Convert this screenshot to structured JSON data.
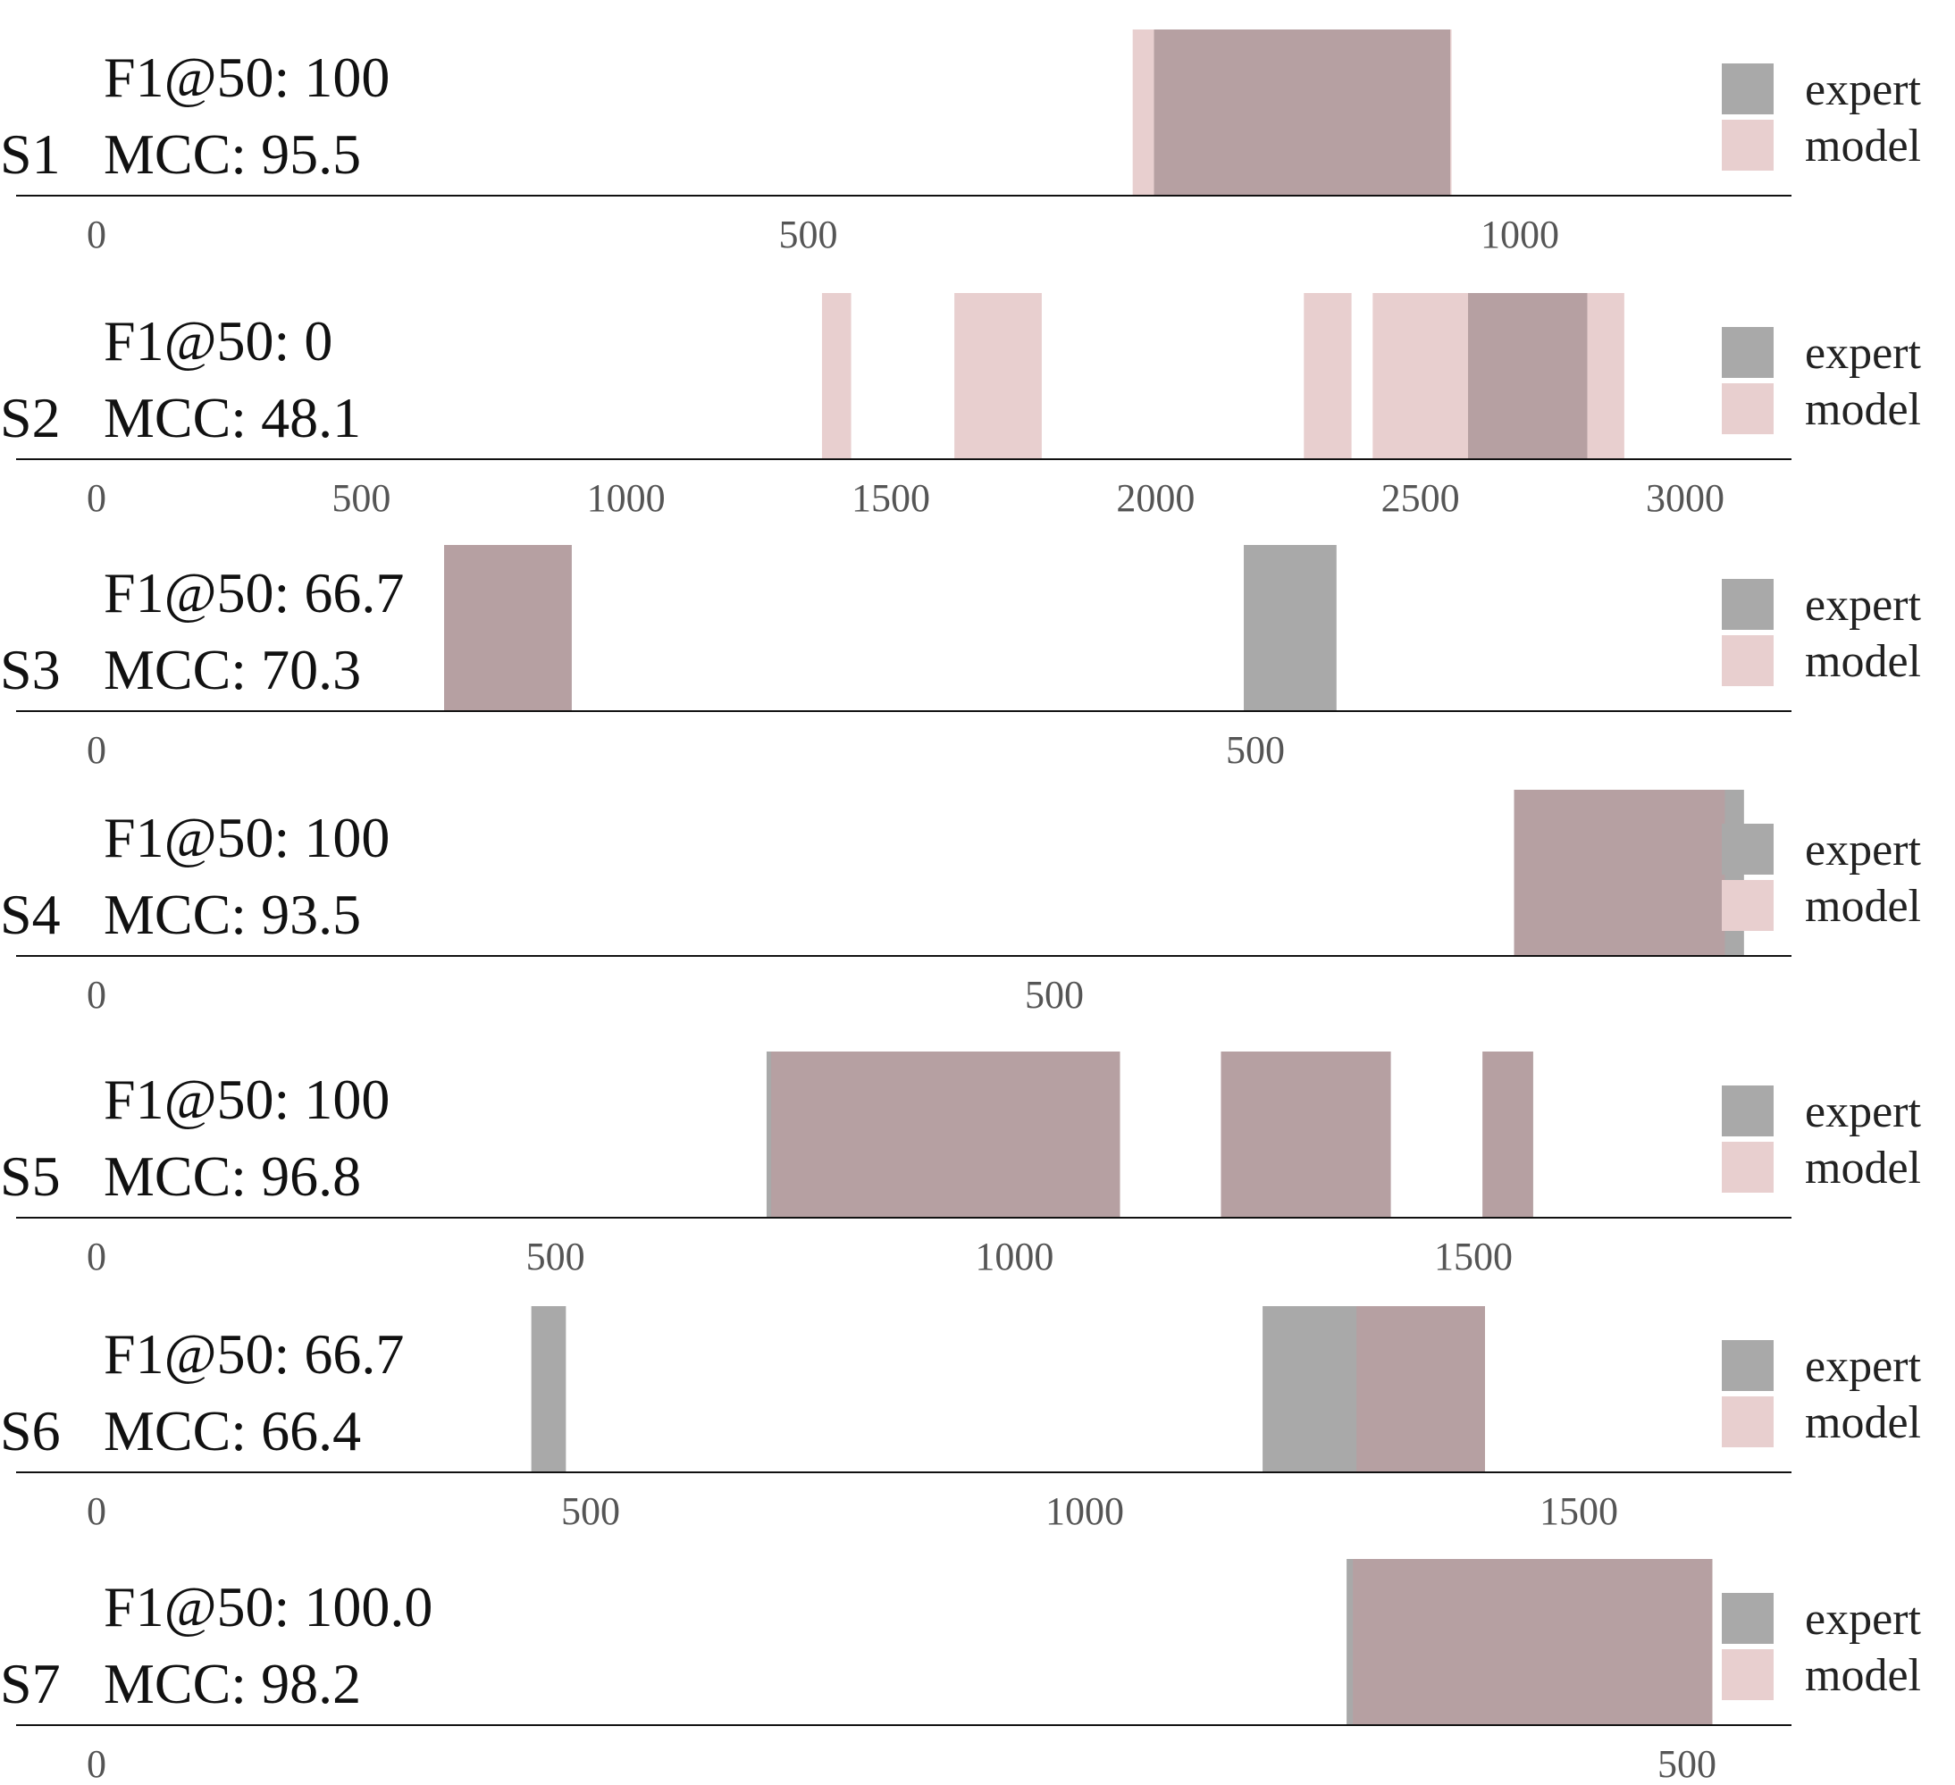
{
  "colors": {
    "expert": "#a9a9a9",
    "model": "#e8cfcf",
    "overlap": "#b6a0a2",
    "axis": "#111111"
  },
  "legend": {
    "expert_label": "expert",
    "model_label": "model"
  },
  "chart_data": [
    {
      "type": "segmentation-timeline",
      "label": "S1",
      "f1_text": "F1@50: 100",
      "mcc_text": "MCC: 95.5",
      "xlim": [
        -60,
        1150
      ],
      "ticks": [
        0,
        500,
        1000
      ],
      "expert": [
        [
          743,
          951
        ]
      ],
      "model": [
        [
          728,
          952
        ]
      ]
    },
    {
      "type": "segmentation-timeline",
      "label": "S2",
      "f1_text": "F1@50: 0",
      "mcc_text": "MCC: 48.1",
      "xlim": [
        -150,
        3200
      ],
      "ticks": [
        0,
        500,
        1000,
        1500,
        2000,
        2500,
        3000
      ],
      "expert": [
        [
          2590,
          2815
        ]
      ],
      "model": [
        [
          1370,
          1425
        ],
        [
          1620,
          1785
        ],
        [
          2280,
          2370
        ],
        [
          2410,
          2885
        ]
      ]
    },
    {
      "type": "segmentation-timeline",
      "label": "S3",
      "f1_text": "F1@50: 66.7",
      "mcc_text": "MCC: 70.3",
      "xlim": [
        -50,
        940
      ],
      "ticks": [
        0,
        500
      ],
      "expert": [
        [
          150,
          205
        ],
        [
          495,
          535
        ]
      ],
      "model": [
        [
          150,
          205
        ]
      ]
    },
    {
      "type": "segmentation-timeline",
      "label": "S4",
      "f1_text": "F1@50: 100",
      "mcc_text": "MCC: 93.5",
      "xlim": [
        -80,
        1110
      ],
      "ticks": [
        0,
        500
      ],
      "expert": [
        [
          740,
          860
        ]
      ],
      "model": [
        [
          740,
          850
        ]
      ]
    },
    {
      "type": "segmentation-timeline",
      "label": "S5",
      "f1_text": "F1@50: 100",
      "mcc_text": "MCC: 96.8",
      "xlim": [
        -90,
        1850
      ],
      "ticks": [
        0,
        500,
        1000,
        1500
      ],
      "expert": [
        [
          730,
          1115
        ],
        [
          1225,
          1410
        ],
        [
          1510,
          1565
        ]
      ],
      "model": [
        [
          735,
          1115
        ],
        [
          1225,
          1410
        ],
        [
          1510,
          1565
        ]
      ]
    },
    {
      "type": "segmentation-timeline",
      "label": "S6",
      "f1_text": "F1@50: 66.7",
      "mcc_text": "MCC: 66.4",
      "xlim": [
        -80,
        1720
      ],
      "ticks": [
        0,
        500,
        1000,
        1500
      ],
      "expert": [
        [
          440,
          475
        ],
        [
          1180,
          1405
        ]
      ],
      "model": [
        [
          1275,
          1405
        ]
      ]
    },
    {
      "type": "segmentation-timeline",
      "label": "S7",
      "f1_text": "F1@50: 100.0",
      "mcc_text": "MCC: 98.2",
      "xlim": [
        -30,
        525
      ],
      "ticks": [
        0,
        500
      ],
      "expert": [
        [
          393,
          508
        ]
      ],
      "model": [
        [
          395,
          508
        ]
      ]
    }
  ]
}
